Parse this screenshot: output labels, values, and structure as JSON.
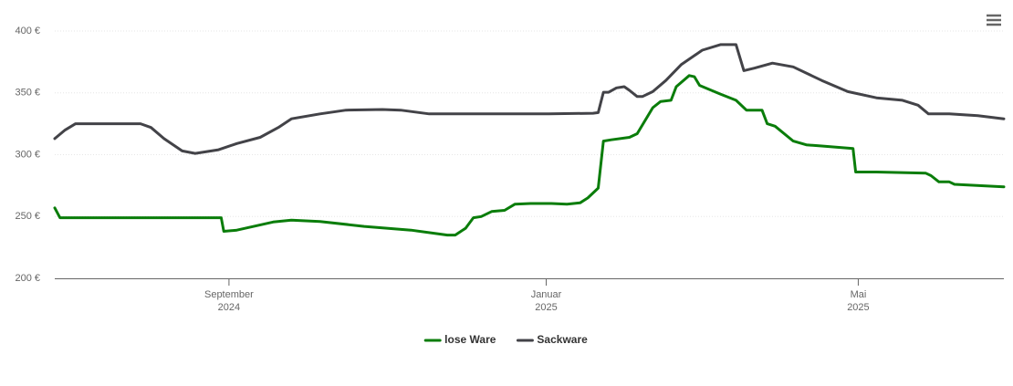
{
  "chart_data": {
    "type": "line",
    "xlim": [
      "2024-06-26",
      "2025-06-26"
    ],
    "xticks": [
      {
        "value": "2024-09-01",
        "label": "September\n2024"
      },
      {
        "value": "2025-01-01",
        "label": "Januar\n2025"
      },
      {
        "value": "2025-05-01",
        "label": "Mai\n2025"
      }
    ],
    "ylim": [
      200,
      400
    ],
    "yticks": [
      {
        "value": 200,
        "label": "200 €"
      },
      {
        "value": 250,
        "label": "250 €"
      },
      {
        "value": 300,
        "label": "300 €"
      },
      {
        "value": 350,
        "label": "350 €"
      },
      {
        "value": 400,
        "label": "400 €"
      }
    ],
    "grid": true,
    "legend": "bottom",
    "series": [
      {
        "name": "lose Ware",
        "color": "#0a7d0a",
        "x": [
          "2024-06-26",
          "2024-06-28",
          "2024-08-29",
          "2024-08-30",
          "2024-09-04",
          "2024-09-18",
          "2024-09-25",
          "2024-10-06",
          "2024-10-23",
          "2024-11-10",
          "2024-11-24",
          "2024-11-27",
          "2024-12-01",
          "2024-12-04",
          "2024-12-07",
          "2024-12-11",
          "2024-12-16",
          "2024-12-20",
          "2024-12-26",
          "2025-01-03",
          "2025-01-09",
          "2025-01-14",
          "2025-01-17",
          "2025-01-21",
          "2025-01-23",
          "2025-01-26",
          "2025-02-02",
          "2025-02-05",
          "2025-02-11",
          "2025-02-14",
          "2025-02-18",
          "2025-02-20",
          "2025-02-25",
          "2025-02-27",
          "2025-03-01",
          "2025-03-09",
          "2025-03-15",
          "2025-03-19",
          "2025-03-25",
          "2025-03-27",
          "2025-03-30",
          "2025-04-06",
          "2025-04-11",
          "2025-04-17",
          "2025-04-29",
          "2025-04-30",
          "2025-05-08",
          "2025-05-27",
          "2025-05-29",
          "2025-06-01",
          "2025-06-05",
          "2025-06-07",
          "2025-06-26"
        ],
        "values": [
          257,
          249,
          249,
          238,
          239,
          245.5,
          247,
          246,
          242,
          239,
          235,
          235,
          240.5,
          249,
          250,
          254,
          255,
          260,
          260.5,
          260.5,
          260,
          261,
          265,
          273,
          311,
          312,
          314,
          317,
          338,
          343,
          344,
          355,
          364,
          363,
          356,
          349,
          344,
          336,
          336,
          325,
          323,
          311,
          308,
          307,
          305,
          286,
          286,
          285,
          283,
          278,
          278,
          276,
          274
        ]
      },
      {
        "name": "Sackware",
        "color": "#434348",
        "x": [
          "2024-06-26",
          "2024-06-30",
          "2024-07-04",
          "2024-07-29",
          "2024-08-02",
          "2024-08-07",
          "2024-08-14",
          "2024-08-19",
          "2024-08-28",
          "2024-09-04",
          "2024-09-13",
          "2024-09-20",
          "2024-09-25",
          "2024-10-06",
          "2024-10-16",
          "2024-10-30",
          "2024-11-06",
          "2024-11-17",
          "2025-01-02",
          "2025-01-19",
          "2025-01-21",
          "2025-01-23",
          "2025-01-25",
          "2025-01-28",
          "2025-01-31",
          "2025-02-02",
          "2025-02-05",
          "2025-02-07",
          "2025-02-11",
          "2025-02-16",
          "2025-02-22",
          "2025-03-02",
          "2025-03-09",
          "2025-03-15",
          "2025-03-18",
          "2025-03-22",
          "2025-03-29",
          "2025-04-06",
          "2025-04-17",
          "2025-04-27",
          "2025-05-08",
          "2025-05-18",
          "2025-05-24",
          "2025-05-28",
          "2025-06-05",
          "2025-06-16",
          "2025-06-26"
        ],
        "values": [
          313,
          320,
          325,
          325,
          322,
          313,
          303,
          301,
          304,
          309,
          314,
          322,
          329,
          333,
          336,
          336.5,
          336,
          333,
          333,
          333.5,
          334,
          350.5,
          350.5,
          354,
          355,
          352,
          347,
          347,
          351,
          360,
          373,
          384.5,
          389,
          389,
          368,
          370,
          374,
          371,
          360,
          351,
          346,
          344,
          340,
          333,
          333,
          331.5,
          329
        ]
      }
    ]
  }
}
